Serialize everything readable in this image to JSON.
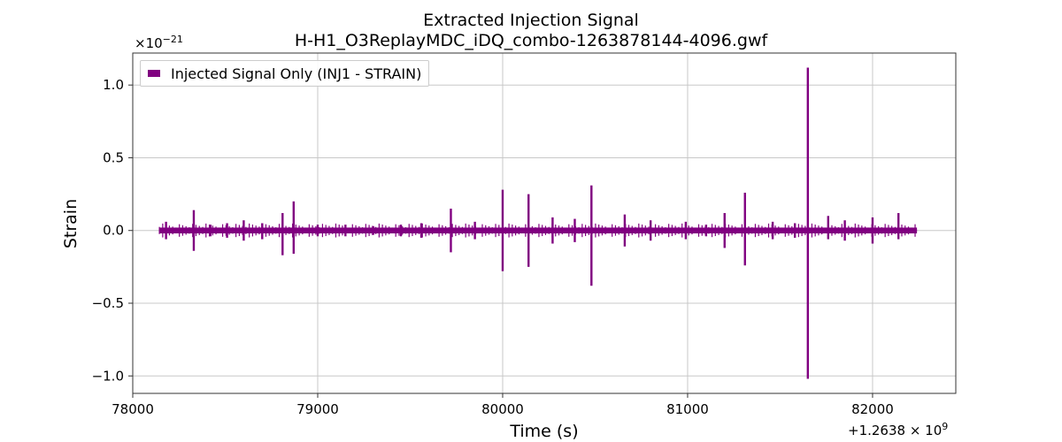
{
  "chart_data": {
    "type": "line",
    "title": "Extracted Injection Signal",
    "subtitle": "H-H1_O3ReplayMDC_iDQ_combo-1263878144-4096.gwf",
    "xlabel": "Time (s)",
    "ylabel": "Strain",
    "x_offset_label": "+1.2638 × 10",
    "x_offset_exponent": "9",
    "y_multiplier_label": "×10",
    "y_multiplier_exponent": "−21",
    "xlim": [
      78000,
      82450
    ],
    "ylim": [
      -1.12,
      1.22
    ],
    "x_ticks": [
      78000,
      79000,
      80000,
      81000,
      82000
    ],
    "x_tick_labels": [
      "78000",
      "79000",
      "80000",
      "81000",
      "82000"
    ],
    "y_ticks": [
      -1.0,
      -0.5,
      0.0,
      0.5,
      1.0
    ],
    "y_tick_labels": [
      "−1.0",
      "−0.5",
      "0.0",
      "0.5",
      "1.0"
    ],
    "grid": true,
    "legend_position": "top-left",
    "series": [
      {
        "name": "Injected Signal Only (INJ1 - STRAIN)",
        "color": "#800080",
        "x_range": [
          78144,
          78240
        ],
        "x_end": 82240,
        "baseline_band": [
          -0.02,
          0.02
        ],
        "spikes": [
          {
            "x": 78180,
            "max": 0.06,
            "min": -0.06
          },
          {
            "x": 78330,
            "max": 0.14,
            "min": -0.14
          },
          {
            "x": 78420,
            "max": 0.04,
            "min": -0.04
          },
          {
            "x": 78510,
            "max": 0.05,
            "min": -0.05
          },
          {
            "x": 78600,
            "max": 0.07,
            "min": -0.07
          },
          {
            "x": 78700,
            "max": 0.05,
            "min": -0.06
          },
          {
            "x": 78810,
            "max": 0.12,
            "min": -0.17
          },
          {
            "x": 78870,
            "max": 0.2,
            "min": -0.16
          },
          {
            "x": 79000,
            "max": 0.04,
            "min": -0.04
          },
          {
            "x": 79150,
            "max": 0.04,
            "min": -0.04
          },
          {
            "x": 79300,
            "max": 0.03,
            "min": -0.03
          },
          {
            "x": 79450,
            "max": 0.04,
            "min": -0.04
          },
          {
            "x": 79560,
            "max": 0.05,
            "min": -0.05
          },
          {
            "x": 79720,
            "max": 0.15,
            "min": -0.15
          },
          {
            "x": 79850,
            "max": 0.06,
            "min": -0.06
          },
          {
            "x": 80000,
            "max": 0.28,
            "min": -0.28
          },
          {
            "x": 80140,
            "max": 0.25,
            "min": -0.25
          },
          {
            "x": 80270,
            "max": 0.09,
            "min": -0.09
          },
          {
            "x": 80390,
            "max": 0.08,
            "min": -0.08
          },
          {
            "x": 80480,
            "max": 0.31,
            "min": -0.38
          },
          {
            "x": 80660,
            "max": 0.11,
            "min": -0.11
          },
          {
            "x": 80800,
            "max": 0.07,
            "min": -0.07
          },
          {
            "x": 80990,
            "max": 0.06,
            "min": -0.06
          },
          {
            "x": 81100,
            "max": 0.04,
            "min": -0.04
          },
          {
            "x": 81200,
            "max": 0.12,
            "min": -0.12
          },
          {
            "x": 81310,
            "max": 0.26,
            "min": -0.24
          },
          {
            "x": 81460,
            "max": 0.06,
            "min": -0.06
          },
          {
            "x": 81580,
            "max": 0.05,
            "min": -0.05
          },
          {
            "x": 81650,
            "max": 1.12,
            "min": -1.02
          },
          {
            "x": 81760,
            "max": 0.1,
            "min": -0.06
          },
          {
            "x": 81850,
            "max": 0.07,
            "min": -0.07
          },
          {
            "x": 82000,
            "max": 0.09,
            "min": -0.09
          },
          {
            "x": 82140,
            "max": 0.12,
            "min": -0.06
          }
        ]
      }
    ]
  }
}
